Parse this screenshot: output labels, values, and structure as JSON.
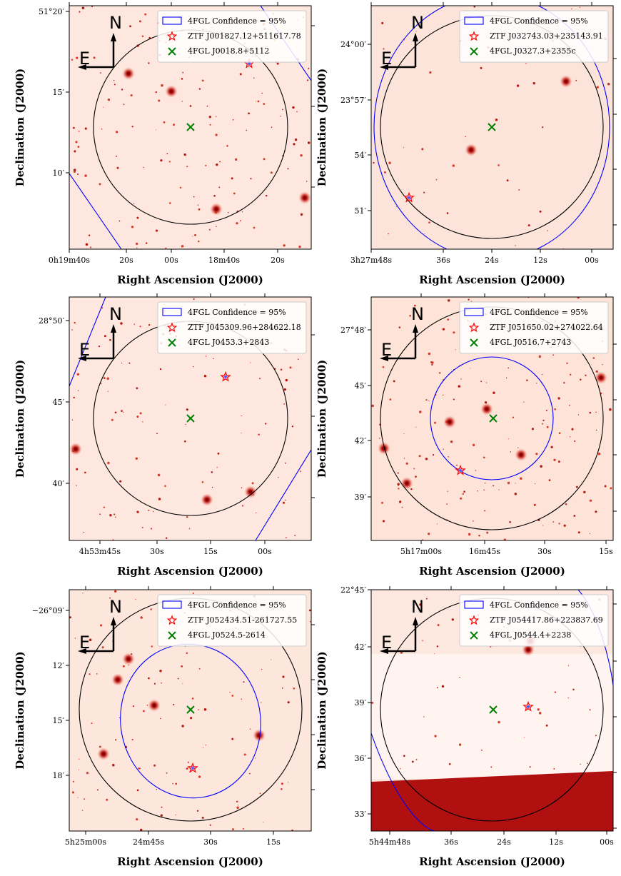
{
  "panels": [
    {
      "xlabel": "Right Ascension (J2000)",
      "ylabel": "Declination (J2000)",
      "xticks": [
        "0h19m40s",
        "20s",
        "00s",
        "18m40s",
        "20s"
      ],
      "yticks": [
        "51°20′",
        "15′",
        "10′"
      ],
      "legend": [
        "4FGL Confidence = 95%",
        "ZTF J001827.12+511617.78",
        "4FGL J0018.8+5112"
      ],
      "compass": {
        "north": "N",
        "east": "E"
      },
      "background": "#fde7de"
    },
    {
      "xlabel": "Right Ascension (J2000)",
      "ylabel": "Declination (J2000)",
      "xticks": [
        "3h27m48s",
        "36s",
        "24s",
        "12s",
        "00s"
      ],
      "yticks": [
        "24°00′",
        "23°57′",
        "54′",
        "51′"
      ],
      "legend": [
        "4FGL Confidence = 95%",
        "ZTF J032743.03+235143.91",
        "4FGL J0327.3+2355c"
      ],
      "compass": {
        "north": "N",
        "east": "E"
      },
      "background": "#fde4da"
    },
    {
      "xlabel": "Right Ascension (J2000)",
      "ylabel": "Declination (J2000)",
      "xticks": [
        "4h53m45s",
        "30s",
        "15s",
        "00s"
      ],
      "yticks": [
        "28°50′",
        "45′",
        "40′"
      ],
      "legend": [
        "4FGL Confidence = 95%",
        "ZTF J045309.96+284622.18",
        "4FGL J0453.3+2843"
      ],
      "compass": {
        "north": "N",
        "east": "E"
      },
      "background": "#fde7de"
    },
    {
      "xlabel": "Right Ascension (J2000)",
      "ylabel": "Declination (J2000)",
      "xticks": [
        "5h17m00s",
        "16m45s",
        "30s",
        "15s"
      ],
      "yticks": [
        "27°48′",
        "45′",
        "42′",
        "39′"
      ],
      "legend": [
        "4FGL Confidence = 95%",
        "ZTF J051650.02+274022.64",
        "4FGL J0516.7+2743"
      ],
      "compass": {
        "north": "N",
        "east": "E"
      },
      "background": "#fde3d8"
    },
    {
      "xlabel": "Right Ascension (J2000)",
      "ylabel": "Declination (J2000)",
      "xticks": [
        "5h25m00s",
        "24m45s",
        "30s",
        "15s"
      ],
      "yticks": [
        "−26°09′",
        "12′",
        "15′",
        "18′"
      ],
      "legend": [
        "4FGL Confidence = 95%",
        "ZTF J052434.51-261727.55",
        "4FGL J0524.5-2614"
      ],
      "compass": {
        "north": "N",
        "east": "E"
      },
      "background": "#fde6dc"
    },
    {
      "xlabel": "Right Ascension (J2000)",
      "ylabel": "Declination (J2000)",
      "xticks": [
        "5h44m48s",
        "36s",
        "24s",
        "12s",
        "00s"
      ],
      "yticks": [
        "22°45′",
        "42′",
        "39′",
        "36′",
        "33′"
      ],
      "legend": [
        "4FGL Confidence = 95%",
        "ZTF J054417.86+223837.69",
        "4FGL J0544.4+2238"
      ],
      "compass": {
        "north": "N",
        "east": "E"
      },
      "background": "#fde8e0",
      "band_color": "#b01010"
    }
  ]
}
